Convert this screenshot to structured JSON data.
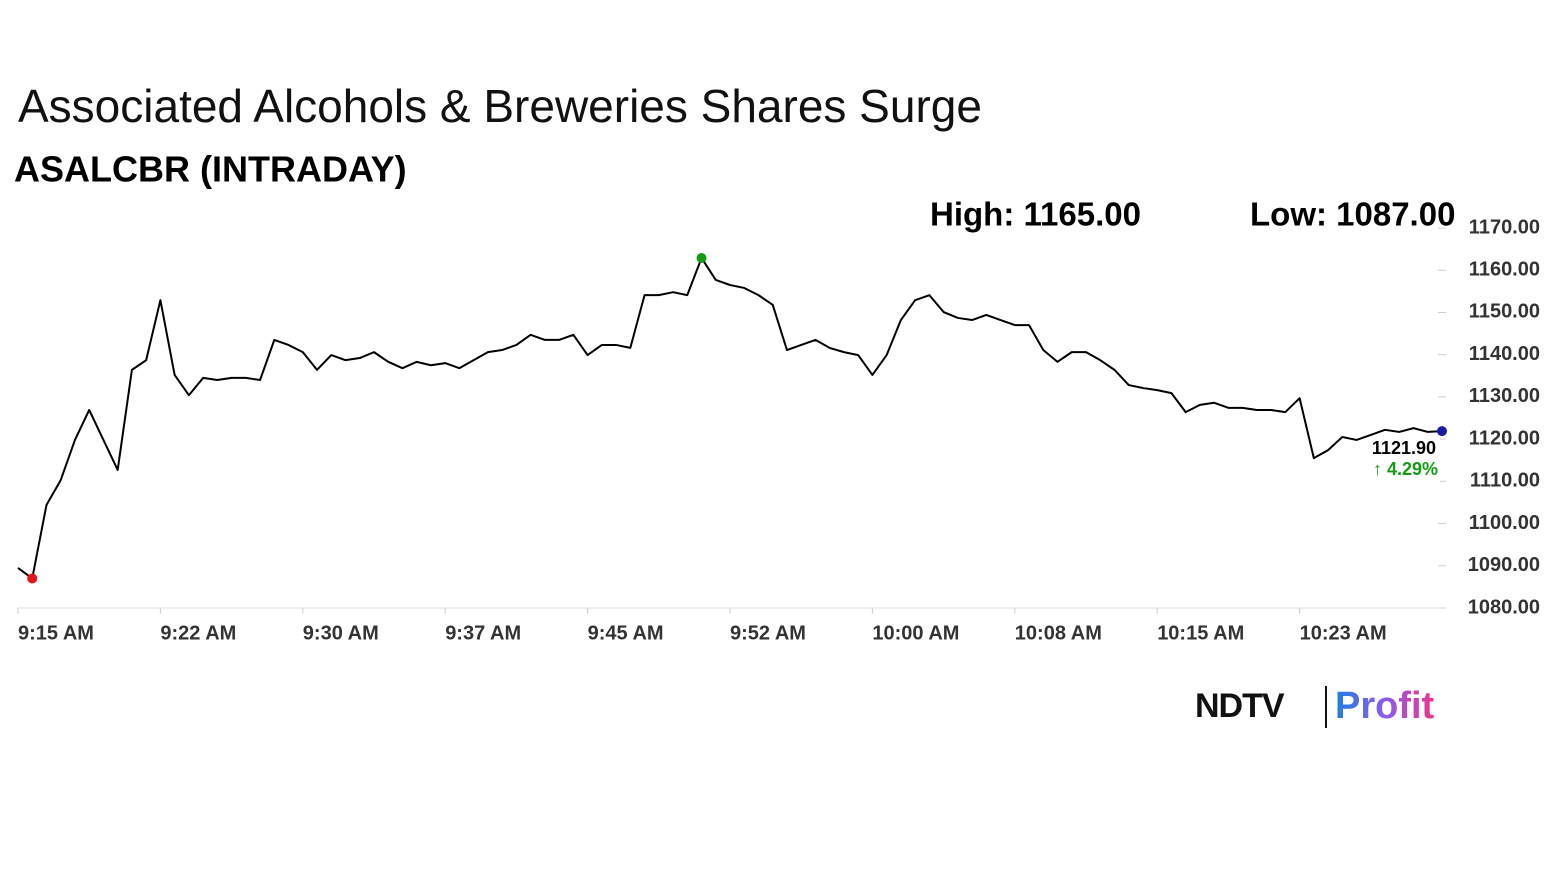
{
  "chart_data": {
    "type": "line",
    "title": "Associated Alcohols & Breweries Shares Surge",
    "subtitle": "ASALCBR (INTRADAY)",
    "high_label": "High: 1165.00",
    "low_label": "Low: 1087.00",
    "last_label": "1121.90",
    "change_label": "↑ 4.29%",
    "brand": [
      "NDTV",
      "Profit"
    ],
    "series": [
      {
        "color": "#000000",
        "values": [
          1089.5,
          1087.0,
          1104.4,
          1110.3,
          1119.8,
          1126.9,
          1119.8,
          1112.7,
          1136.4,
          1138.7,
          1152.9,
          1135.2,
          1130.4,
          1134.5,
          1134.0,
          1134.5,
          1134.5,
          1134.0,
          1143.5,
          1142.3,
          1140.6,
          1136.4,
          1139.9,
          1138.7,
          1139.2,
          1140.6,
          1138.3,
          1136.8,
          1138.3,
          1137.5,
          1138.0,
          1136.8,
          1138.7,
          1140.6,
          1141.1,
          1142.3,
          1144.7,
          1143.5,
          1143.5,
          1144.7,
          1139.9,
          1142.3,
          1142.3,
          1141.6,
          1154.1,
          1154.1,
          1154.8,
          1154.1,
          1162.9,
          1157.7,
          1156.5,
          1155.8,
          1154.1,
          1151.8,
          1141.1,
          1142.3,
          1143.5,
          1141.6,
          1140.6,
          1139.9,
          1135.2,
          1139.9,
          1148.2,
          1152.9,
          1154.1,
          1150.1,
          1148.7,
          1148.2,
          1149.4,
          1148.2,
          1147.0,
          1147.0,
          1141.1,
          1138.3,
          1140.6,
          1140.6,
          1138.7,
          1136.4,
          1132.8,
          1132.1,
          1131.6,
          1130.9,
          1126.4,
          1128.1,
          1128.6,
          1127.4,
          1127.4,
          1126.9,
          1126.9,
          1126.4,
          1129.7,
          1115.5,
          1117.4,
          1120.5,
          1119.8,
          1121.0,
          1122.2,
          1121.7,
          1122.6,
          1121.7,
          1121.9
        ]
      }
    ],
    "markers": [
      {
        "index": 1,
        "color": "#e8141b"
      },
      {
        "index": 48,
        "color": "#139c13"
      },
      {
        "index": 100,
        "color": "#1a1aa6"
      }
    ],
    "xlim": [
      0,
      100
    ],
    "xticks": [
      {
        "value": 0,
        "label": "9:15 AM"
      },
      {
        "value": 10,
        "label": "9:22 AM"
      },
      {
        "value": 20,
        "label": "9:30 AM"
      },
      {
        "value": 30,
        "label": "9:37 AM"
      },
      {
        "value": 40,
        "label": "9:45 AM"
      },
      {
        "value": 50,
        "label": "9:52 AM"
      },
      {
        "value": 60,
        "label": "10:00 AM"
      },
      {
        "value": 70,
        "label": "10:08 AM"
      },
      {
        "value": 80,
        "label": "10:15 AM"
      },
      {
        "value": 90,
        "label": "10:23 AM"
      }
    ],
    "ylim": [
      1080,
      1170
    ],
    "yticks": [
      {
        "value": 1080,
        "label": "1080.00"
      },
      {
        "value": 1090,
        "label": "1090.00"
      },
      {
        "value": 1100,
        "label": "1100.00"
      },
      {
        "value": 1110,
        "label": "1110.00"
      },
      {
        "value": 1120,
        "label": "1120.00"
      },
      {
        "value": 1130,
        "label": "1130.00"
      },
      {
        "value": 1140,
        "label": "1140.00"
      },
      {
        "value": 1150,
        "label": "1150.00"
      },
      {
        "value": 1160,
        "label": "1160.00"
      },
      {
        "value": 1170,
        "label": "1170.00"
      }
    ]
  }
}
